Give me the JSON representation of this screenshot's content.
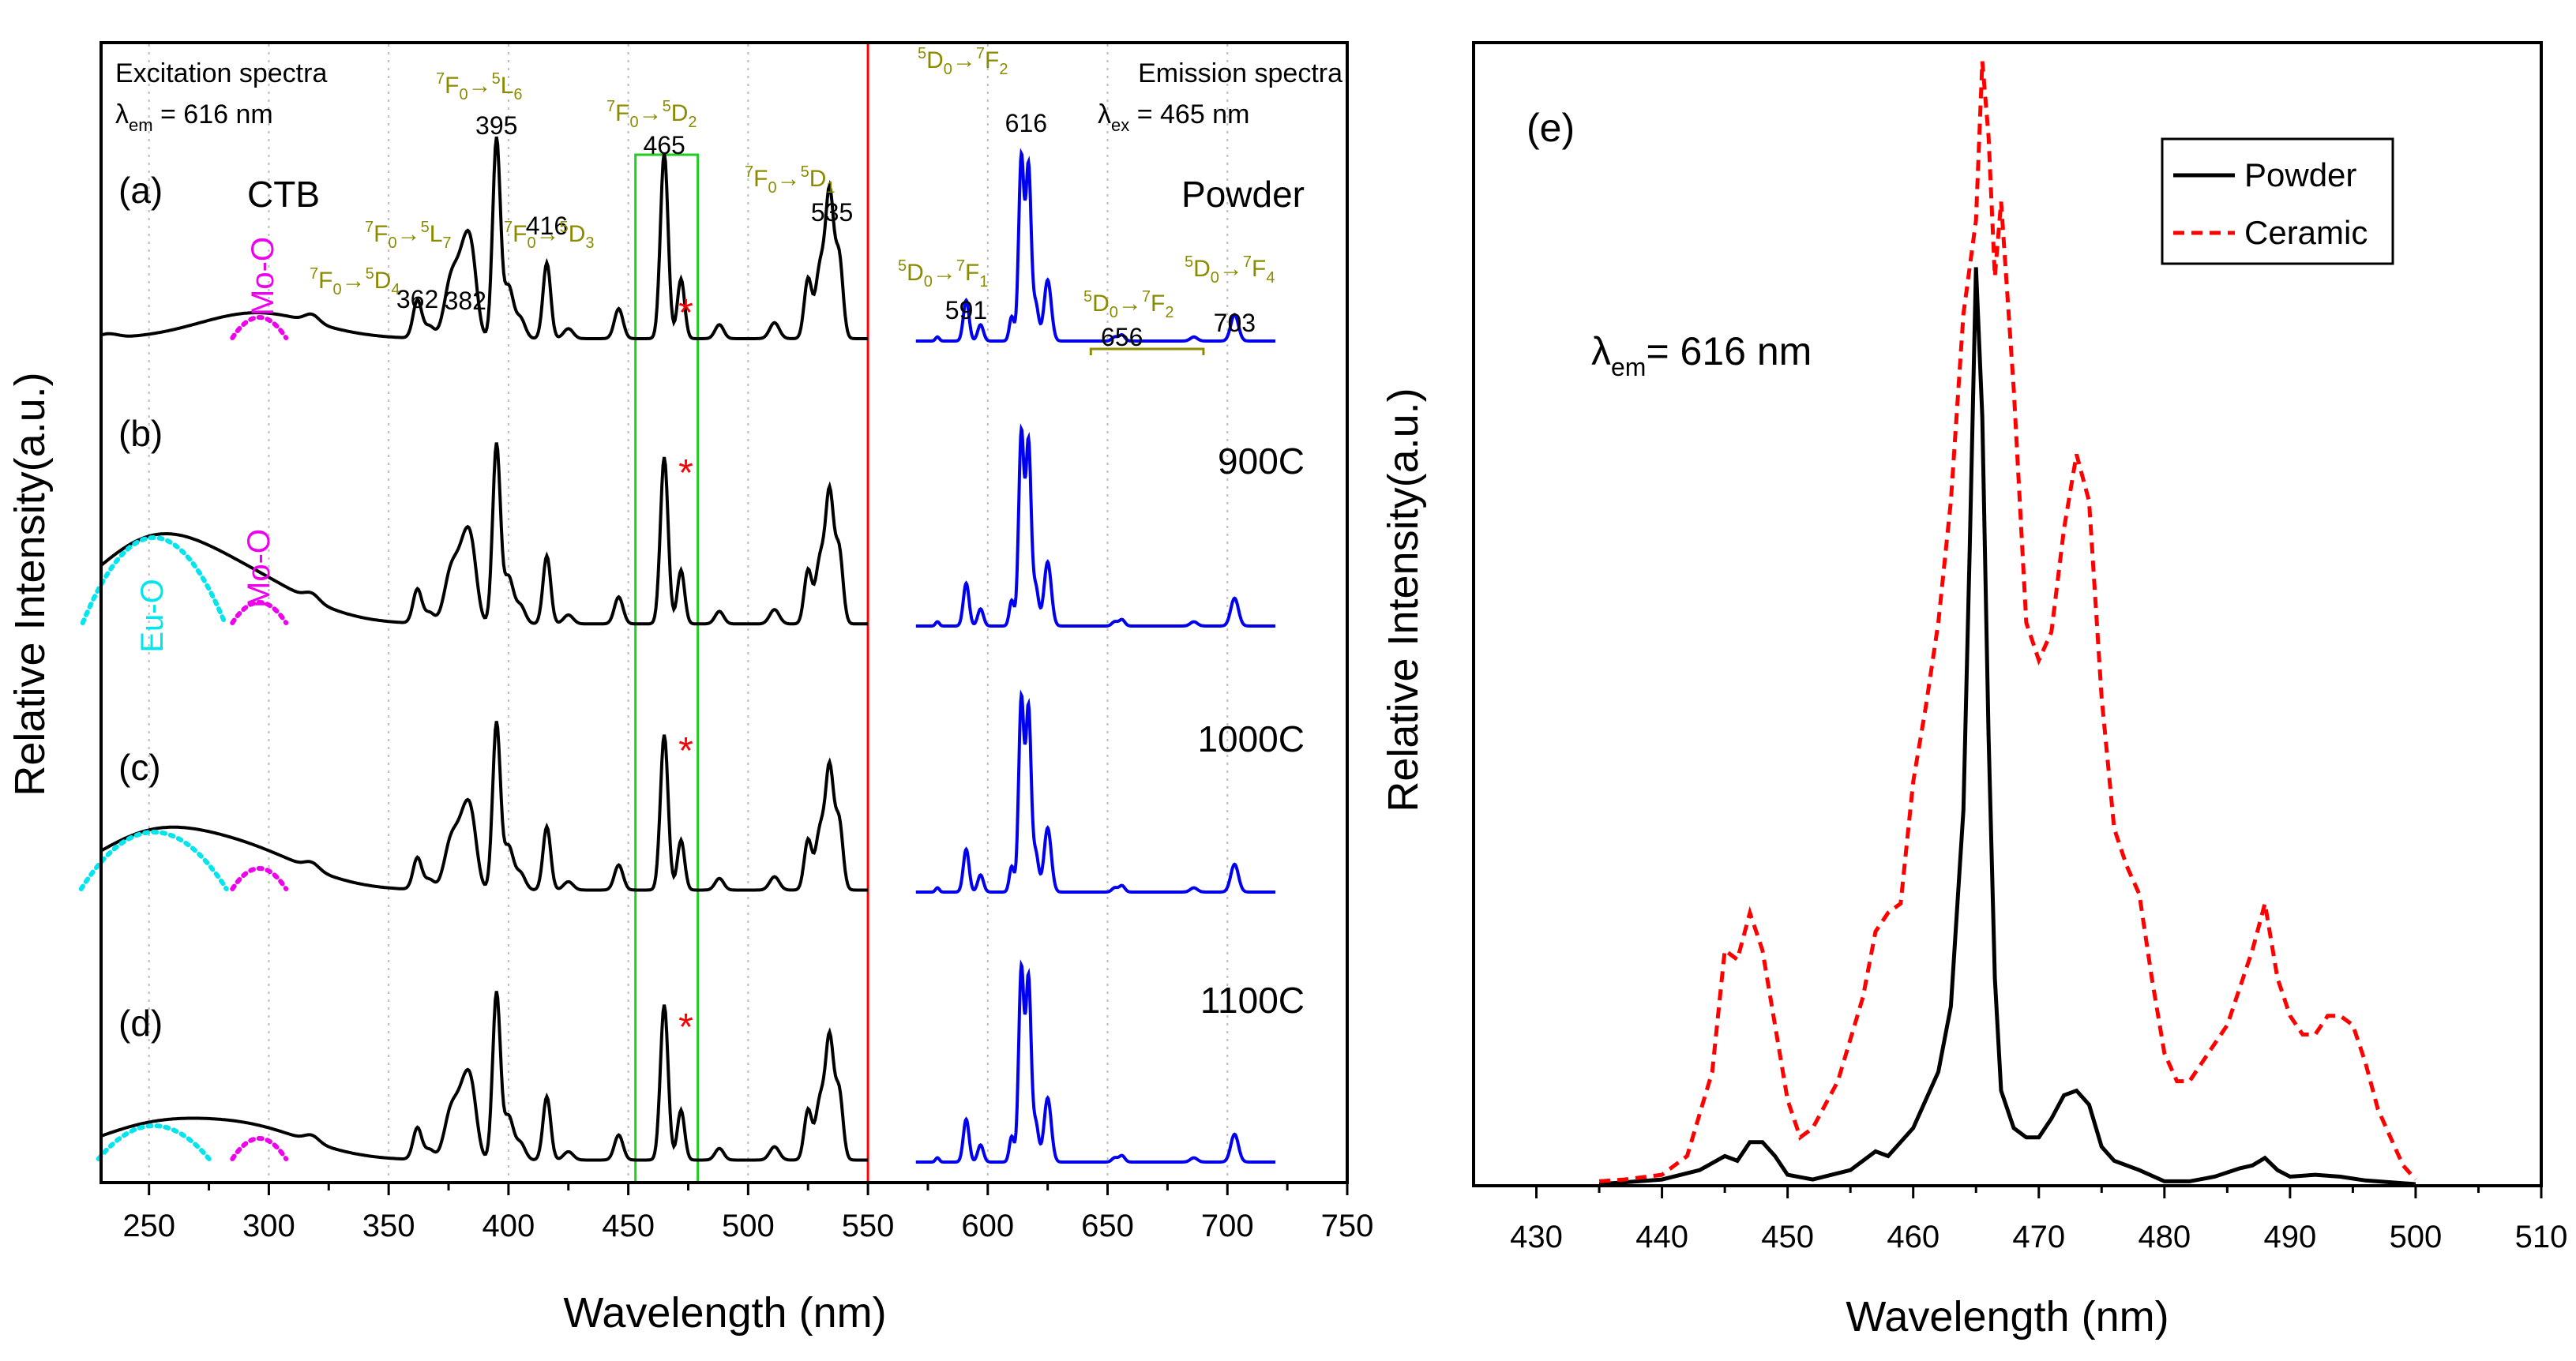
{
  "colors": {
    "black": "#000000",
    "blue": "#0000ee",
    "red": "#ff0000",
    "olive": "#8b8b00",
    "magenta": "#ee00ee",
    "cyan": "#00e5ee",
    "green": "#22cc22",
    "grid": "#bbbbbb"
  },
  "chart_data": [
    {
      "type": "line",
      "panel": "left",
      "xlabel": "Wavelength (nm)",
      "ylabel": "Relative Intensity(a.u.)",
      "xlim": [
        230,
        750
      ],
      "xticks": [
        "250",
        "300",
        "350",
        "400",
        "450",
        "500",
        "550",
        "600",
        "650",
        "700",
        "750"
      ],
      "xtick_values": [
        250,
        300,
        350,
        400,
        450,
        500,
        550,
        600,
        650,
        700,
        750
      ],
      "divider_x": 550,
      "highlight_range": [
        453,
        479
      ],
      "excitation_header": {
        "line1": "Excitation spectra",
        "lambda": "λ",
        "sub": "em",
        "rest": " = 616 nm"
      },
      "emission_header": {
        "line1": "Emission spectra",
        "lambda": "λ",
        "sub": "ex",
        "rest": " = 465 nm"
      },
      "panel_labels": [
        "(a)",
        "(b)",
        "(c)",
        "(d)"
      ],
      "sample_labels": [
        "Powder",
        "900C",
        "1000C",
        "1100C"
      ],
      "ctb_label": "CTB",
      "band_labels": {
        "mo_o": "Mo-O",
        "eu_o": "Eu-O"
      },
      "peak_numbers": [
        {
          "text": "362",
          "x": 362
        },
        {
          "text": "382",
          "x": 382
        },
        {
          "text": "395",
          "x": 395
        },
        {
          "text": "416",
          "x": 416
        },
        {
          "text": "465",
          "x": 465
        },
        {
          "text": "535",
          "x": 535
        },
        {
          "text": "591",
          "x": 591
        },
        {
          "text": "616",
          "x": 616
        },
        {
          "text": "656",
          "x": 656
        },
        {
          "text": "703",
          "x": 703
        }
      ],
      "transitions": [
        {
          "from": "7F0",
          "to": "5D4",
          "t1": "7",
          "s1": "F",
          "n1": "0",
          "t2": "5",
          "s2": "D",
          "n2": "4"
        },
        {
          "from": "7F0",
          "to": "5L7",
          "t1": "7",
          "s1": "F",
          "n1": "0",
          "t2": "5",
          "s2": "L",
          "n2": "7"
        },
        {
          "from": "7F0",
          "to": "5L6",
          "t1": "7",
          "s1": "F",
          "n1": "0",
          "t2": "5",
          "s2": "L",
          "n2": "6"
        },
        {
          "from": "7F0",
          "to": "5D3",
          "t1": "7",
          "s1": "F",
          "n1": "0",
          "t2": "5",
          "s2": "D",
          "n2": "3"
        },
        {
          "from": "7F0",
          "to": "5D2",
          "t1": "7",
          "s1": "F",
          "n1": "0",
          "t2": "5",
          "s2": "D",
          "n2": "2"
        },
        {
          "from": "7F0",
          "to": "5D1",
          "t1": "7",
          "s1": "F",
          "n1": "0",
          "t2": "5",
          "s2": "D",
          "n2": "1"
        },
        {
          "from": "5D0",
          "to": "7F1",
          "t1": "5",
          "s1": "D",
          "n1": "0",
          "t2": "7",
          "s2": "F",
          "n2": "1"
        },
        {
          "from": "5D0",
          "to": "7F2",
          "t1": "5",
          "s1": "D",
          "n1": "0",
          "t2": "7",
          "s2": "F",
          "n2": "2"
        },
        {
          "from": "5D0",
          "to": "7F2",
          "t1": "5",
          "s1": "D",
          "n1": "0",
          "t2": "7",
          "s2": "F",
          "n2": "2"
        },
        {
          "from": "5D0",
          "to": "7F4",
          "t1": "5",
          "s1": "D",
          "n1": "0",
          "t2": "7",
          "s2": "F",
          "n2": "4"
        }
      ],
      "arrow": "→",
      "star": "*",
      "excitation_peaks": [
        {
          "c": 318,
          "w": 3,
          "h": 0.04
        },
        {
          "c": 362,
          "w": 1.8,
          "h": 0.19
        },
        {
          "c": 367,
          "w": 2,
          "h": 0.06
        },
        {
          "c": 376,
          "w": 2.8,
          "h": 0.28
        },
        {
          "c": 382,
          "w": 3,
          "h": 0.42
        },
        {
          "c": 385,
          "w": 2.2,
          "h": 0.2
        },
        {
          "c": 395,
          "w": 1.6,
          "h": 1.0
        },
        {
          "c": 400,
          "w": 2,
          "h": 0.26
        },
        {
          "c": 405,
          "w": 2,
          "h": 0.1
        },
        {
          "c": 416,
          "w": 1.6,
          "h": 0.38
        },
        {
          "c": 425,
          "w": 2,
          "h": 0.05
        },
        {
          "c": 446,
          "w": 1.8,
          "h": 0.15
        },
        {
          "c": 465,
          "w": 1.6,
          "h": 0.93
        },
        {
          "c": 472,
          "w": 1.5,
          "h": 0.3
        },
        {
          "c": 488,
          "w": 1.8,
          "h": 0.07
        },
        {
          "c": 511,
          "w": 2,
          "h": 0.08
        },
        {
          "c": 525,
          "w": 1.6,
          "h": 0.3
        },
        {
          "c": 530,
          "w": 1.8,
          "h": 0.35
        },
        {
          "c": 534,
          "w": 1.7,
          "h": 0.72
        },
        {
          "c": 538,
          "w": 1.6,
          "h": 0.4
        }
      ],
      "emission_peaks": [
        {
          "c": 579,
          "w": 0.8,
          "h": 0.02
        },
        {
          "c": 591,
          "w": 1.2,
          "h": 0.2
        },
        {
          "c": 597,
          "w": 1.2,
          "h": 0.08
        },
        {
          "c": 610,
          "w": 1.0,
          "h": 0.12
        },
        {
          "c": 614,
          "w": 1.1,
          "h": 0.9
        },
        {
          "c": 617,
          "w": 1.1,
          "h": 0.85
        },
        {
          "c": 620,
          "w": 1.2,
          "h": 0.18
        },
        {
          "c": 625,
          "w": 1.5,
          "h": 0.3
        },
        {
          "c": 653,
          "w": 1.2,
          "h": 0.02
        },
        {
          "c": 656,
          "w": 1.2,
          "h": 0.03
        },
        {
          "c": 686,
          "w": 1.5,
          "h": 0.02
        },
        {
          "c": 703,
          "w": 1.6,
          "h": 0.13
        }
      ],
      "ctb_bands": [
        {
          "center": 295,
          "height": 0.13,
          "width": 24,
          "eu_height": 0.0
        },
        {
          "center": 295,
          "height": 0.18,
          "width": 24,
          "eu_height": 0.46
        },
        {
          "center": 295,
          "height": 0.18,
          "width": 24,
          "eu_height": 0.33
        },
        {
          "center": 295,
          "height": 0.16,
          "width": 24,
          "eu_height": 0.2
        }
      ],
      "excitation_scale": [
        0.98,
        0.88,
        0.82,
        0.82
      ],
      "emission_scale": [
        1.0,
        1.05,
        1.05,
        1.05
      ]
    },
    {
      "type": "line",
      "panel": "right",
      "panel_label": "(e)",
      "annotation": {
        "lambda": "λ",
        "sub": "em",
        "rest": "= 616 nm"
      },
      "xlabel": "Wavelength (nm)",
      "ylabel": "Relative Intensity(a.u.)",
      "xlim": [
        425,
        510
      ],
      "ylim": [
        0,
        1.22
      ],
      "xticks": [
        "430",
        "440",
        "450",
        "460",
        "470",
        "480",
        "490",
        "500",
        "510"
      ],
      "xtick_values": [
        430,
        440,
        450,
        460,
        470,
        480,
        490,
        500,
        510
      ],
      "series": [
        {
          "name": "Powder",
          "style": "solid",
          "x": [
            435,
            440,
            443,
            445,
            446,
            447,
            448,
            449,
            450,
            452,
            455,
            457,
            458,
            460,
            462,
            463,
            464,
            464.5,
            465,
            465.5,
            466,
            466.5,
            467,
            468,
            469,
            470,
            471,
            472,
            473,
            474,
            475,
            476,
            478,
            480,
            482,
            484,
            486,
            487,
            488,
            489,
            490,
            492,
            494,
            496,
            498,
            500
          ],
          "values": [
            0,
            0.005,
            0.015,
            0.03,
            0.025,
            0.045,
            0.045,
            0.03,
            0.01,
            0.005,
            0.015,
            0.035,
            0.03,
            0.06,
            0.12,
            0.19,
            0.4,
            0.68,
            0.98,
            0.82,
            0.48,
            0.22,
            0.1,
            0.06,
            0.05,
            0.05,
            0.07,
            0.095,
            0.1,
            0.085,
            0.04,
            0.025,
            0.015,
            0.003,
            0.003,
            0.008,
            0.017,
            0.02,
            0.028,
            0.015,
            0.008,
            0.01,
            0.008,
            0.004,
            0.002,
            0
          ]
        },
        {
          "name": "Ceramic",
          "style": "dashed",
          "x": [
            435,
            437,
            440,
            442,
            444,
            445,
            446,
            447,
            448,
            449,
            450,
            451,
            452,
            454,
            456,
            457,
            458,
            459,
            460,
            461,
            462,
            463,
            464,
            465,
            465.5,
            466,
            466.5,
            467,
            468,
            469,
            470,
            471,
            472,
            473,
            474,
            475,
            476,
            477,
            478,
            479,
            480,
            481,
            482,
            483,
            484,
            485,
            486,
            487,
            488,
            489,
            490,
            491,
            492,
            493,
            494,
            495,
            496,
            497,
            498,
            499,
            500
          ],
          "values": [
            0.003,
            0.005,
            0.01,
            0.03,
            0.12,
            0.25,
            0.24,
            0.29,
            0.25,
            0.17,
            0.09,
            0.05,
            0.06,
            0.11,
            0.2,
            0.27,
            0.29,
            0.3,
            0.43,
            0.51,
            0.6,
            0.73,
            0.93,
            1.03,
            1.2,
            1.12,
            0.97,
            1.05,
            0.85,
            0.6,
            0.56,
            0.59,
            0.7,
            0.78,
            0.73,
            0.52,
            0.38,
            0.34,
            0.31,
            0.22,
            0.14,
            0.11,
            0.11,
            0.13,
            0.15,
            0.17,
            0.21,
            0.25,
            0.3,
            0.22,
            0.18,
            0.16,
            0.16,
            0.18,
            0.18,
            0.17,
            0.13,
            0.08,
            0.05,
            0.02,
            0.005
          ]
        }
      ]
    }
  ]
}
